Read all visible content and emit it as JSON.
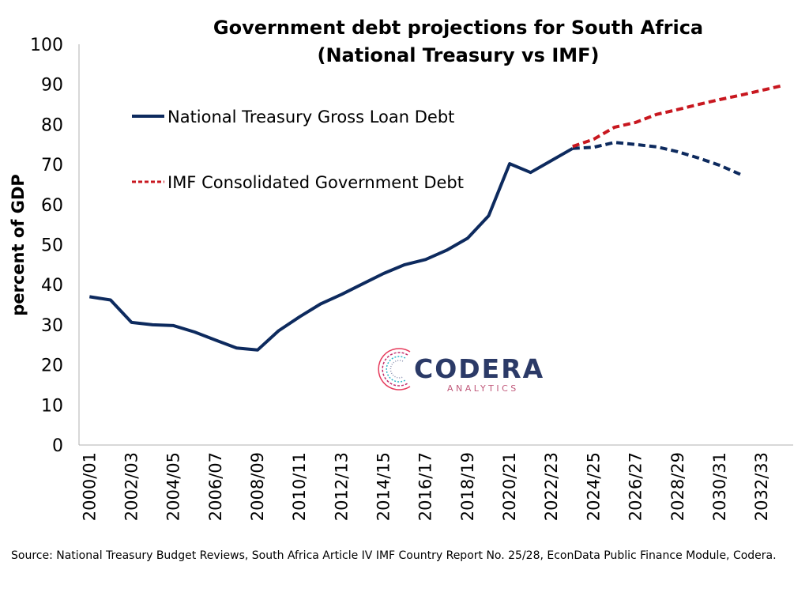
{
  "chart_data": {
    "type": "line",
    "title": [
      "Government debt projections for South Africa",
      "(National Treasury vs IMF)"
    ],
    "xlabel": "",
    "ylabel": "percent of GDP",
    "ylim": [
      0,
      100
    ],
    "yticks": [
      0,
      10,
      20,
      30,
      40,
      50,
      60,
      70,
      80,
      90,
      100
    ],
    "grid": false,
    "legend_placement": "top-left",
    "x_tick_labels": [
      "2000/01",
      "2002/03",
      "2004/05",
      "2006/07",
      "2008/09",
      "2010/11",
      "2012/13",
      "2014/15",
      "2016/17",
      "2018/19",
      "2020/21",
      "2022/23",
      "2024/25",
      "2026/27",
      "2028/29",
      "2030/31",
      "2032/33"
    ],
    "categories": [
      "2000/01",
      "2001/02",
      "2002/03",
      "2003/04",
      "2004/05",
      "2005/06",
      "2006/07",
      "2007/08",
      "2008/09",
      "2009/10",
      "2010/11",
      "2011/12",
      "2012/13",
      "2013/14",
      "2014/15",
      "2015/16",
      "2016/17",
      "2017/18",
      "2018/19",
      "2019/20",
      "2020/21",
      "2021/22",
      "2022/23",
      "2023/24",
      "2024/25",
      "2025/26",
      "2026/27",
      "2027/28",
      "2028/29",
      "2029/30",
      "2030/31",
      "2031/32",
      "2032/33",
      "2033/34"
    ],
    "series": [
      {
        "name": "National Treasury Gross Loan Debt",
        "color": "#0d2a5e",
        "style": "solid",
        "x": [
          "2000/01",
          "2001/02",
          "2002/03",
          "2003/04",
          "2004/05",
          "2005/06",
          "2006/07",
          "2007/08",
          "2008/09",
          "2009/10",
          "2010/11",
          "2011/12",
          "2012/13",
          "2013/14",
          "2014/15",
          "2015/16",
          "2016/17",
          "2017/18",
          "2018/19",
          "2019/20",
          "2020/21",
          "2021/22",
          "2022/23",
          "2023/24"
        ],
        "values": [
          37.0,
          36.2,
          30.6,
          30.0,
          29.8,
          28.2,
          26.2,
          24.2,
          23.7,
          28.5,
          32.0,
          35.2,
          37.6,
          40.2,
          42.8,
          45.0,
          46.3,
          48.6,
          51.6,
          57.2,
          70.2,
          68.0,
          71.0,
          74.0
        ]
      },
      {
        "name": "",
        "color": "#0d2a5e",
        "style": "dashed",
        "x": [
          "2023/24",
          "2024/25",
          "2025/26",
          "2026/27",
          "2027/28",
          "2028/29",
          "2029/30",
          "2030/31",
          "2031/32"
        ],
        "values": [
          74.0,
          74.3,
          75.5,
          75.0,
          74.4,
          73.2,
          71.6,
          69.8,
          67.5
        ]
      },
      {
        "name": "IMF Consolidated Government Debt",
        "color": "#c8171f",
        "style": "dashed",
        "x": [
          "2023/24",
          "2024/25",
          "2025/26",
          "2026/27",
          "2027/28",
          "2028/29",
          "2029/30",
          "2030/31",
          "2031/32",
          "2032/33",
          "2033/34"
        ],
        "values": [
          74.5,
          76.3,
          79.3,
          80.5,
          82.5,
          83.7,
          85.0,
          86.2,
          87.3,
          88.5,
          89.7
        ]
      }
    ]
  },
  "legend": {
    "items": [
      {
        "label": "National Treasury Gross Loan Debt",
        "color": "#0d2a5e",
        "style": "solid"
      },
      {
        "label": "IMF Consolidated Government Debt",
        "color": "#c8171f",
        "style": "dashed"
      }
    ]
  },
  "logo": {
    "name": "CODERA",
    "tagline": "ANALYTICS",
    "colors": [
      "#e63a5b",
      "#2fb5c9",
      "#2b3a67",
      "#c0c0d0"
    ]
  },
  "source_note": "Source: National Treasury Budget Reviews, South Africa Article IV IMF Country Report No. 25/28, EconData Public Finance Module, Codera."
}
